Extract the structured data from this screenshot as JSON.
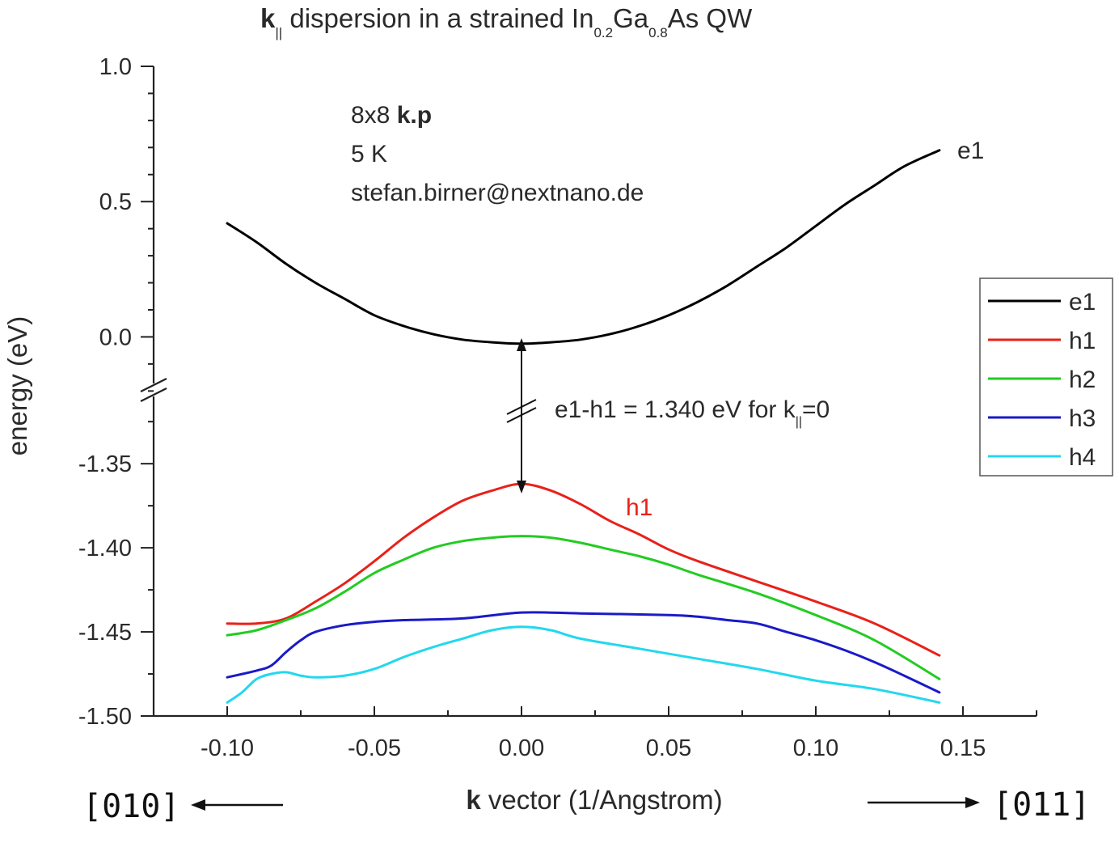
{
  "chart_data": {
    "type": "line",
    "title": {
      "bold_prefix": "k",
      "prefix_sub": "||",
      "text1": " dispersion in a strained In",
      "sub1": "0.2",
      "text2": "Ga",
      "sub2": "0.8",
      "text3": "As QW"
    },
    "xlabel": {
      "bold": "k",
      "rest": " vector (1/Angstrom)"
    },
    "ylabel": "energy (eV)",
    "xlim": [
      -0.125,
      0.175
    ],
    "xticks": [
      "-0.10",
      "-0.05",
      "0.00",
      "0.05",
      "0.10",
      "0.15"
    ],
    "xtick_values": [
      -0.1,
      -0.05,
      0.0,
      0.05,
      0.1,
      0.15
    ],
    "y_upper": {
      "range": [
        -0.22,
        1.0
      ],
      "ticks": [
        "1.0",
        "0.5",
        "0.0"
      ],
      "tick_values": [
        1.0,
        0.5,
        0.0
      ]
    },
    "y_lower": {
      "range": [
        -1.5,
        -1.31
      ],
      "ticks": [
        "-1.35",
        "-1.40",
        "-1.45",
        "-1.50"
      ],
      "tick_values": [
        -1.35,
        -1.4,
        -1.45,
        -1.5
      ]
    },
    "axis_break": true,
    "grid": false,
    "legend_position": "right",
    "annotations": {
      "method_prefix": "8x8 ",
      "method_bold": "k.p",
      "temperature": "5 K",
      "contact": "stefan.birner@nextnano.de",
      "gap_prefix": "e1-h1 = 1.340 eV for k",
      "gap_sub": "||",
      "gap_suffix": "=0",
      "label_e1": "e1",
      "label_h1": "h1",
      "dir_left": "[010]",
      "dir_right": "[011]"
    },
    "series": [
      {
        "name": "e1",
        "color": "#000000",
        "segment": "upper",
        "points": [
          [
            -0.1,
            0.42
          ],
          [
            -0.09,
            0.35
          ],
          [
            -0.08,
            0.27
          ],
          [
            -0.07,
            0.2
          ],
          [
            -0.06,
            0.14
          ],
          [
            -0.05,
            0.08
          ],
          [
            -0.04,
            0.04
          ],
          [
            -0.03,
            0.01
          ],
          [
            -0.02,
            -0.01
          ],
          [
            -0.01,
            -0.02
          ],
          [
            0.0,
            -0.025
          ],
          [
            0.01,
            -0.02
          ],
          [
            0.02,
            -0.01
          ],
          [
            0.03,
            0.01
          ],
          [
            0.04,
            0.04
          ],
          [
            0.05,
            0.08
          ],
          [
            0.06,
            0.13
          ],
          [
            0.07,
            0.19
          ],
          [
            0.08,
            0.26
          ],
          [
            0.09,
            0.33
          ],
          [
            0.1,
            0.41
          ],
          [
            0.11,
            0.49
          ],
          [
            0.12,
            0.56
          ],
          [
            0.13,
            0.63
          ],
          [
            0.142,
            0.69
          ]
        ]
      },
      {
        "name": "h1",
        "color": "#e8211a",
        "segment": "lower",
        "points": [
          [
            -0.1,
            -1.445
          ],
          [
            -0.09,
            -1.445
          ],
          [
            -0.08,
            -1.442
          ],
          [
            -0.07,
            -1.432
          ],
          [
            -0.06,
            -1.421
          ],
          [
            -0.05,
            -1.408
          ],
          [
            -0.04,
            -1.394
          ],
          [
            -0.03,
            -1.382
          ],
          [
            -0.02,
            -1.372
          ],
          [
            -0.01,
            -1.366
          ],
          [
            0.0,
            -1.362
          ],
          [
            0.01,
            -1.366
          ],
          [
            0.02,
            -1.374
          ],
          [
            0.03,
            -1.384
          ],
          [
            0.04,
            -1.392
          ],
          [
            0.05,
            -1.401
          ],
          [
            0.06,
            -1.408
          ],
          [
            0.08,
            -1.42
          ],
          [
            0.1,
            -1.432
          ],
          [
            0.12,
            -1.445
          ],
          [
            0.142,
            -1.464
          ]
        ]
      },
      {
        "name": "h2",
        "color": "#22cc22",
        "segment": "lower",
        "points": [
          [
            -0.1,
            -1.452
          ],
          [
            -0.09,
            -1.449
          ],
          [
            -0.08,
            -1.443
          ],
          [
            -0.07,
            -1.436
          ],
          [
            -0.06,
            -1.426
          ],
          [
            -0.05,
            -1.415
          ],
          [
            -0.04,
            -1.407
          ],
          [
            -0.03,
            -1.4
          ],
          [
            -0.02,
            -1.396
          ],
          [
            -0.01,
            -1.394
          ],
          [
            0.0,
            -1.393
          ],
          [
            0.01,
            -1.394
          ],
          [
            0.02,
            -1.397
          ],
          [
            0.03,
            -1.401
          ],
          [
            0.04,
            -1.405
          ],
          [
            0.05,
            -1.41
          ],
          [
            0.06,
            -1.416
          ],
          [
            0.08,
            -1.427
          ],
          [
            0.1,
            -1.44
          ],
          [
            0.12,
            -1.455
          ],
          [
            0.142,
            -1.478
          ]
        ]
      },
      {
        "name": "h3",
        "color": "#1a1ac8",
        "segment": "lower",
        "points": [
          [
            -0.1,
            -1.477
          ],
          [
            -0.09,
            -1.473
          ],
          [
            -0.085,
            -1.47
          ],
          [
            -0.08,
            -1.462
          ],
          [
            -0.075,
            -1.455
          ],
          [
            -0.07,
            -1.45
          ],
          [
            -0.06,
            -1.446
          ],
          [
            -0.05,
            -1.444
          ],
          [
            -0.04,
            -1.443
          ],
          [
            -0.02,
            -1.442
          ],
          [
            0.0,
            -1.4385
          ],
          [
            0.02,
            -1.439
          ],
          [
            0.05,
            -1.44
          ],
          [
            0.06,
            -1.441
          ],
          [
            0.07,
            -1.443
          ],
          [
            0.08,
            -1.445
          ],
          [
            0.09,
            -1.45
          ],
          [
            0.1,
            -1.455
          ],
          [
            0.11,
            -1.461
          ],
          [
            0.12,
            -1.468
          ],
          [
            0.13,
            -1.476
          ],
          [
            0.142,
            -1.486
          ]
        ]
      },
      {
        "name": "h4",
        "color": "#22d8ee",
        "segment": "lower",
        "points": [
          [
            -0.1,
            -1.492
          ],
          [
            -0.095,
            -1.486
          ],
          [
            -0.09,
            -1.478
          ],
          [
            -0.085,
            -1.475
          ],
          [
            -0.08,
            -1.474
          ],
          [
            -0.075,
            -1.476
          ],
          [
            -0.07,
            -1.477
          ],
          [
            -0.06,
            -1.476
          ],
          [
            -0.05,
            -1.472
          ],
          [
            -0.04,
            -1.465
          ],
          [
            -0.03,
            -1.459
          ],
          [
            -0.02,
            -1.454
          ],
          [
            -0.01,
            -1.449
          ],
          [
            0.0,
            -1.447
          ],
          [
            0.01,
            -1.449
          ],
          [
            0.02,
            -1.454
          ],
          [
            0.04,
            -1.46
          ],
          [
            0.06,
            -1.466
          ],
          [
            0.08,
            -1.472
          ],
          [
            0.1,
            -1.479
          ],
          [
            0.12,
            -1.484
          ],
          [
            0.142,
            -1.492
          ]
        ]
      }
    ]
  }
}
